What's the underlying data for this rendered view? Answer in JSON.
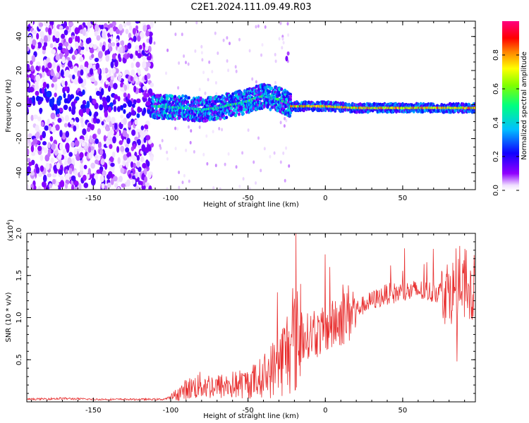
{
  "title": "C2E1.2024.111.09.49.R03",
  "chart_data": [
    {
      "type": "heatmap",
      "title": "C2E1.2024.111.09.49.R03",
      "xlabel": "Height of straight line (km)",
      "ylabel": "Frequency (Hz)",
      "xlim": [
        -193,
        97
      ],
      "ylim": [
        -50,
        49
      ],
      "xticks": [
        -150,
        -100,
        -50,
        0,
        50
      ],
      "yticks": [
        -40,
        -20,
        0,
        20,
        40
      ],
      "xtick_labels": [
        "-150",
        "-100",
        "-50",
        "0",
        "50"
      ],
      "ytick_labels": [
        "-40",
        "-20",
        "0",
        "20",
        "40"
      ],
      "colorbar": {
        "label": "Normalized spectral amplitude",
        "range": [
          0.0,
          1.0
        ],
        "ticks": [
          0.0,
          0.2,
          0.4,
          0.6,
          0.8
        ],
        "tick_labels": [
          "0.0",
          "0.2",
          "0.4",
          "0.6",
          "0.8"
        ],
        "colors": [
          "#ffffff",
          "#8000ff",
          "#0000ff",
          "#00c8ff",
          "#00ff80",
          "#80ff00",
          "#ffff00",
          "#ff8000",
          "#ff0000",
          "#ff0080"
        ]
      },
      "ridge": {
        "x": [
          -193,
          -150,
          -110,
          -90,
          -80,
          -70,
          -60,
          -50,
          -45,
          -40,
          -35,
          -30,
          -25,
          -22,
          -20,
          0,
          20,
          50,
          97
        ],
        "y": [
          2,
          1,
          -1,
          -2,
          -3,
          -2,
          0,
          2,
          4,
          5,
          4,
          3,
          1,
          -1,
          -1,
          -1,
          -2,
          -2,
          -2
        ]
      },
      "noise_region_x": [
        -193,
        -112
      ]
    },
    {
      "type": "line",
      "xlabel": "Height of straight line (km)",
      "ylabel": "SNR (10 * v/v)",
      "multiplier_label": "(x10",
      "multiplier_exp": "4",
      "multiplier_close": ")",
      "xlim": [
        -193,
        97
      ],
      "ylim": [
        0,
        20000
      ],
      "xticks": [
        -150,
        -100,
        -50,
        0,
        50
      ],
      "yticks": [
        5000,
        10000,
        15000,
        20000
      ],
      "xtick_labels": [
        "-150",
        "-100",
        "-50",
        "0",
        "50"
      ],
      "ytick_labels": [
        "0.5",
        "1.0",
        "1.5",
        "2.0"
      ],
      "series": [
        {
          "name": "SNR",
          "color": "#e83030",
          "envelope_x": [
            -193,
            -170,
            -150,
            -120,
            -105,
            -100,
            -90,
            -80,
            -70,
            -60,
            -50,
            -40,
            -30,
            -25,
            -20,
            -15,
            -10,
            -5,
            0,
            5,
            10,
            20,
            30,
            40,
            50,
            60,
            70,
            80,
            90,
            97
          ],
          "envelope_y": [
            300,
            400,
            300,
            300,
            300,
            500,
            1500,
            2000,
            1800,
            2000,
            2200,
            3000,
            4500,
            6000,
            7000,
            7500,
            8000,
            8000,
            8500,
            9000,
            10000,
            11000,
            12000,
            12800,
            13000,
            13200,
            13000,
            13200,
            13000,
            13500
          ],
          "spikes": [
            {
              "x": -19,
              "y": 20000
            },
            {
              "x": 0,
              "y": 17500
            },
            {
              "x": -21,
              "y": 13500
            },
            {
              "x": -31,
              "y": 13000
            },
            {
              "x": -16,
              "y": 14000
            },
            {
              "x": 3,
              "y": 16000
            },
            {
              "x": 87,
              "y": 18500
            },
            {
              "x": 91,
              "y": 18000
            },
            {
              "x": 85,
              "y": 4800
            },
            {
              "x": 94,
              "y": 15000
            }
          ]
        }
      ]
    }
  ]
}
